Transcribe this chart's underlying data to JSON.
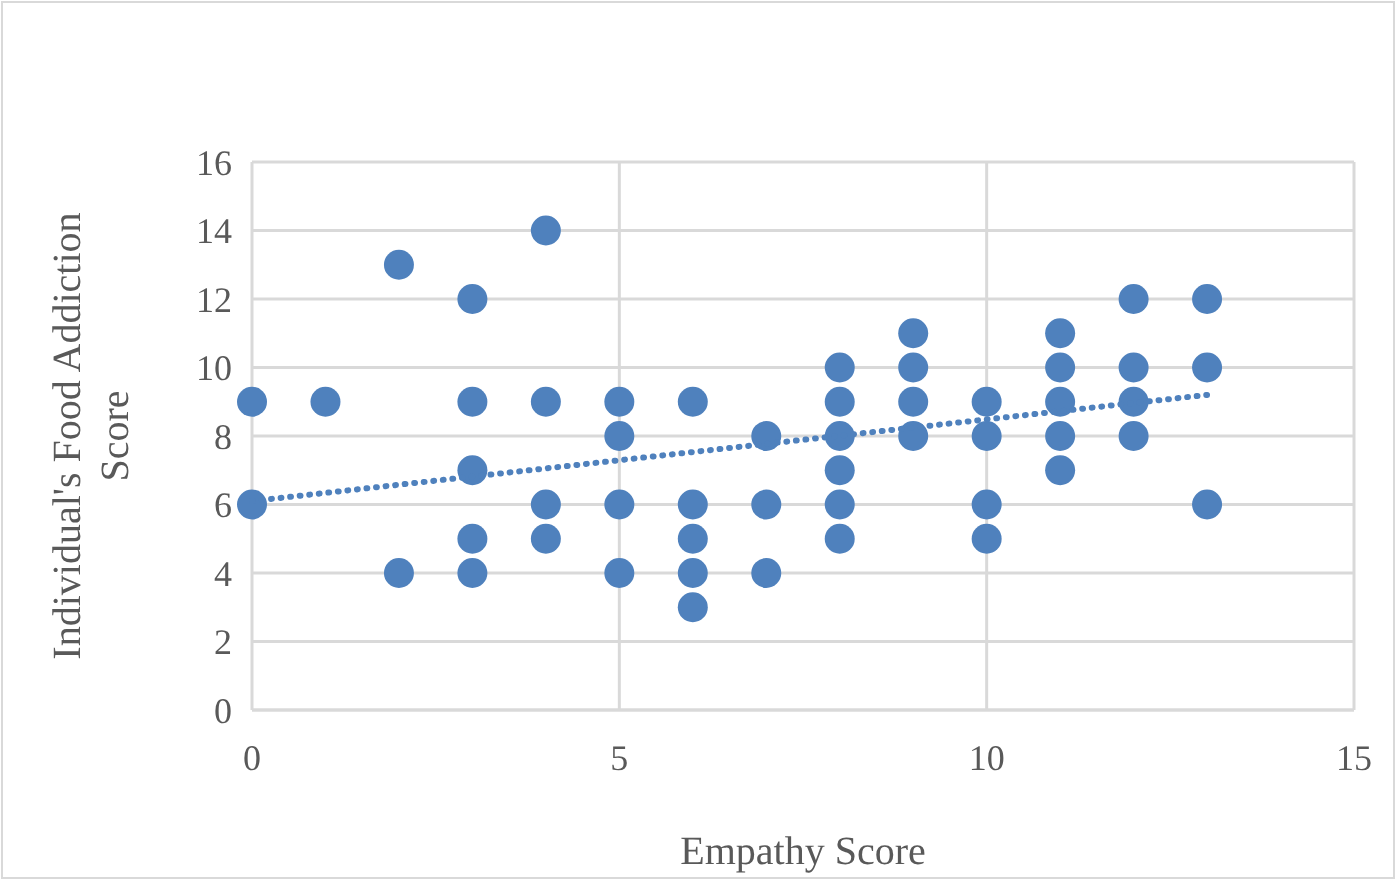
{
  "chart_data": {
    "type": "scatter",
    "xlabel": "Empathy Score",
    "ylabel": "Individual's Food Addiction Score",
    "xlim": [
      0,
      15
    ],
    "xticks": [
      0,
      5,
      10,
      15
    ],
    "ylim": [
      0,
      16
    ],
    "yticks": [
      0,
      2,
      4,
      6,
      8,
      10,
      12,
      14,
      16
    ],
    "grid": true,
    "marker": "circle",
    "series": [
      {
        "color": "#4f81bd",
        "x": [
          0,
          0,
          1,
          2,
          2,
          3,
          3,
          3,
          3,
          3,
          4,
          4,
          4,
          4,
          5,
          5,
          5,
          5,
          6,
          6,
          6,
          6,
          6,
          7,
          7,
          7,
          8,
          8,
          8,
          8,
          8,
          8,
          9,
          9,
          9,
          9,
          10,
          10,
          10,
          10,
          11,
          11,
          11,
          11,
          11,
          12,
          12,
          12,
          12,
          13,
          13,
          13
        ],
        "values": [
          9,
          6,
          9,
          13,
          4,
          12,
          9,
          7,
          5,
          4,
          14,
          9,
          6,
          5,
          9,
          8,
          6,
          4,
          9,
          6,
          5,
          4,
          3,
          8,
          6,
          4,
          10,
          9,
          8,
          7,
          6,
          5,
          11,
          10,
          9,
          8,
          9,
          8,
          6,
          5,
          11,
          10,
          9,
          8,
          7,
          12,
          10,
          9,
          8,
          12,
          10,
          6
        ]
      },
      {
        "type": "line",
        "color": "#4f81bd",
        "line_style": "dotted",
        "marker": "none",
        "x": [
          0,
          13
        ],
        "values": [
          6.1,
          9.2
        ]
      }
    ]
  }
}
